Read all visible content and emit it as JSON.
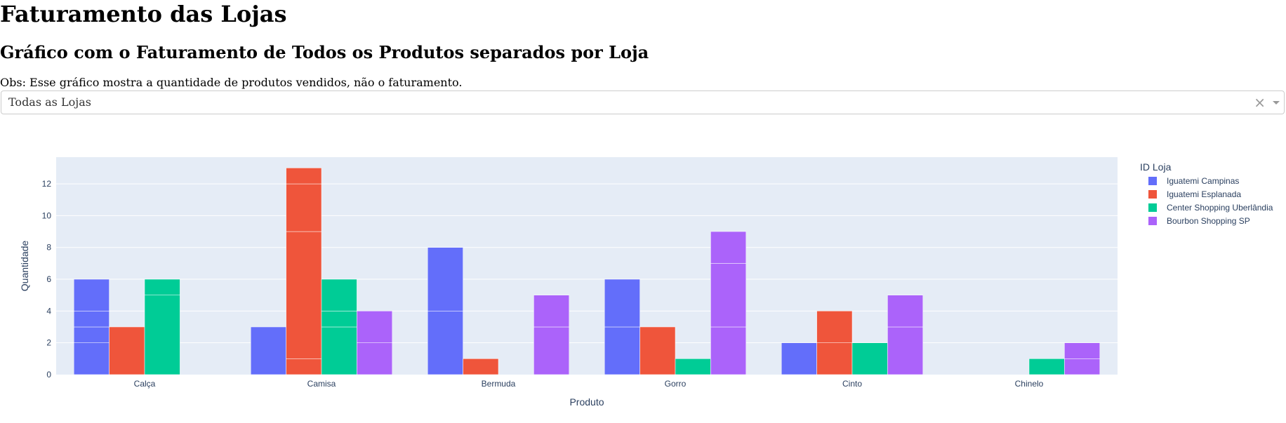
{
  "page": {
    "title": "Faturamento das Lojas",
    "subtitle": "Gráfico com o Faturamento de Todos os Produtos separados por Loja",
    "note": "Obs: Esse gráfico mostra a quantidade de produtos vendidos, não o faturamento."
  },
  "filter": {
    "selected": "Todas as Lojas",
    "clear_symbol": "×"
  },
  "colors": {
    "plot_bg": "#e5ecf6",
    "grid": "#ffffff",
    "axis_text": "#2a3f5f"
  },
  "chart_data": {
    "type": "bar",
    "barmode": "group",
    "title": "",
    "xlabel": "Produto",
    "ylabel": "Quantidade",
    "ylim": [
      0,
      13.68
    ],
    "yticks": [
      0,
      2,
      4,
      6,
      8,
      10,
      12
    ],
    "grid": true,
    "legend_title": "ID Loja",
    "legend_position": "right",
    "categories": [
      "Calça",
      "Camisa",
      "Bermuda",
      "Gorro",
      "Cinto",
      "Chinelo"
    ],
    "series": [
      {
        "name": "Iguatemi Campinas",
        "color": "#636efa",
        "values": [
          6,
          3,
          8,
          6,
          2,
          0
        ],
        "segments": [
          [
            2,
            1,
            1,
            2
          ],
          [
            3
          ],
          [
            4,
            4
          ],
          [
            3,
            3
          ],
          [
            2
          ],
          []
        ]
      },
      {
        "name": "Iguatemi Esplanada",
        "color": "#ef553b",
        "values": [
          3,
          13,
          1,
          3,
          4,
          0
        ],
        "segments": [
          [
            3
          ],
          [
            1,
            8,
            3,
            1
          ],
          [
            1
          ],
          [
            3
          ],
          [
            2,
            2
          ],
          []
        ]
      },
      {
        "name": "Center Shopping Uberlândia",
        "color": "#00cc96",
        "values": [
          6,
          6,
          0,
          1,
          2,
          1
        ],
        "segments": [
          [
            5,
            1
          ],
          [
            3,
            1,
            2
          ],
          [],
          [
            1
          ],
          [
            2
          ],
          [
            1
          ]
        ]
      },
      {
        "name": "Bourbon Shopping SP",
        "color": "#ab63fa",
        "values": [
          0,
          4,
          5,
          9,
          5,
          2
        ],
        "segments": [
          [],
          [
            2,
            2
          ],
          [
            3,
            2
          ],
          [
            3,
            4,
            2
          ],
          [
            3,
            2
          ],
          [
            1,
            1
          ]
        ]
      }
    ]
  }
}
